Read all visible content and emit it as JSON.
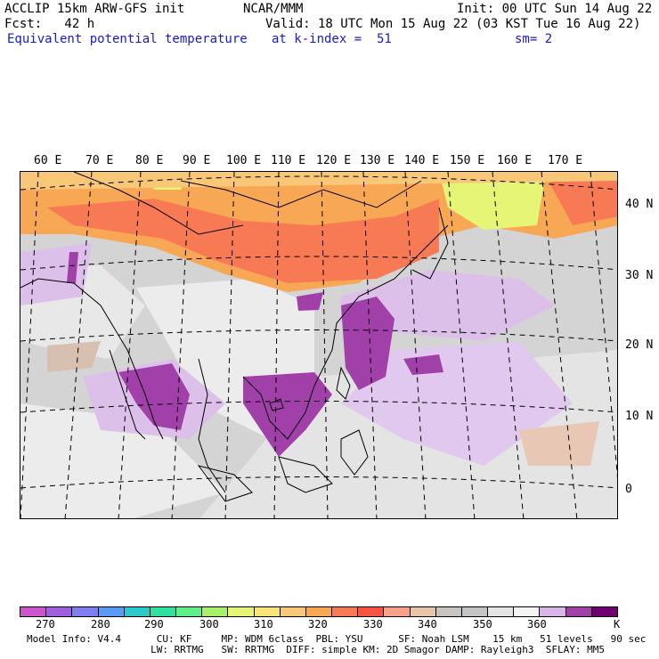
{
  "header": {
    "line1_left": "ACCLIP 15km ARW-GFS init",
    "line1_center": "NCAR/MMM",
    "line1_right": "Init: 00 UTC Sun 14 Aug 22",
    "line2_left": "Fcst:   42 h",
    "line2_right": "Valid: 18 UTC Mon 15 Aug 22 (03 KST Tue 16 Aug 22)",
    "line3_left": "Equivalent potential temperature",
    "line3_center": "at k-index =  51",
    "line3_right": "sm= 2"
  },
  "map": {
    "longitude_labels": [
      "60 E",
      "70 E",
      "80 E",
      "90 E",
      "100 E",
      "110 E",
      "120 E",
      "130 E",
      "140 E",
      "150 E",
      "160 E",
      "170 E"
    ],
    "latitude_labels": [
      "40 N",
      "30 N",
      "20 N",
      "10 N",
      "0"
    ]
  },
  "colorbar": {
    "unit": "K",
    "labels": [
      "270",
      "280",
      "290",
      "300",
      "310",
      "320",
      "330",
      "340",
      "350",
      "360"
    ],
    "colors": [
      "#cc55cc",
      "#a060dd",
      "#7f7fee",
      "#5a9cf5",
      "#2fc8c8",
      "#2fe0a0",
      "#5ff08a",
      "#a8f06a",
      "#e6f575",
      "#f8e678",
      "#f8c878",
      "#f8a855",
      "#f87a55",
      "#f85540",
      "#f8a088",
      "#e8c4a8",
      "#c8c4c0",
      "#c4c4c4",
      "#e4e4e4",
      "#f4f4f4",
      "#d8b4e8",
      "#a040a8",
      "#700070"
    ]
  },
  "footer": {
    "line1": "Model Info: V4.4      CU: KF     MP: WDM 6class  PBL: YSU      SF: Noah LSM    15 km   51 levels   90 sec",
    "line2": "                     LW: RRTMG   SW: RRTMG  DIFF: simple KM: 2D Smagor DAMP: Rayleigh3  SFLAY: MM5"
  }
}
